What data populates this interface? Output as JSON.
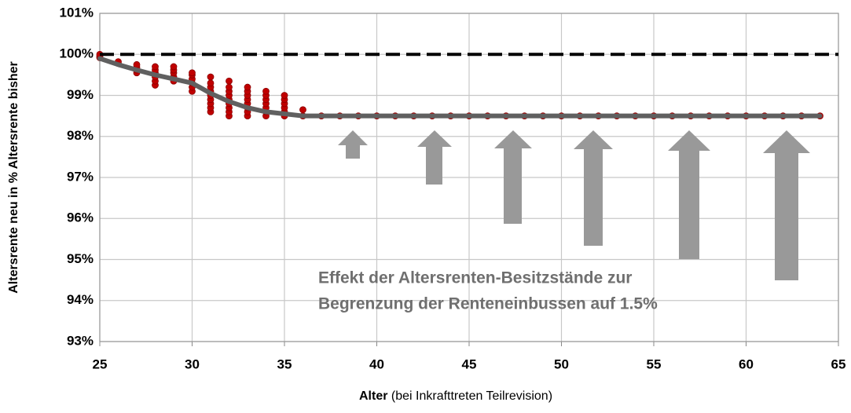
{
  "chart_data": {
    "type": "line",
    "y_label": "Altersrente neu in % Altersrente bisher",
    "x_label_bold": "Alter",
    "x_label": "(bei Inkrafttreten Teilrevision)",
    "annotation": [
      "Effekt der Altersrenten-Besitzstände zur",
      "Begrenzung der Renteneinbussen auf 1.5%"
    ],
    "xlim": [
      25,
      65
    ],
    "xticks": [
      25,
      30,
      35,
      40,
      45,
      50,
      55,
      60,
      65
    ],
    "ylim": [
      93,
      101
    ],
    "yticks": [
      {
        "value": 93,
        "label": "93%"
      },
      {
        "value": 94,
        "label": "94%"
      },
      {
        "value": 95,
        "label": "95%"
      },
      {
        "value": 96,
        "label": "96%"
      },
      {
        "value": 97,
        "label": "97%"
      },
      {
        "value": 98,
        "label": "98%"
      },
      {
        "value": 99,
        "label": "99%"
      },
      {
        "value": 100,
        "label": "100%"
      },
      {
        "value": 101,
        "label": "101%"
      }
    ],
    "grid": true,
    "series": [
      {
        "mode": "scatter",
        "color": "#c00000",
        "x": [
          25,
          25,
          25,
          26,
          26,
          27,
          27,
          27,
          27,
          28,
          28,
          28,
          28,
          28,
          28,
          29,
          29,
          29,
          29,
          29,
          30,
          30,
          30,
          30,
          30,
          30,
          31,
          31,
          31,
          31,
          31,
          31,
          31,
          31,
          31,
          32,
          32,
          32,
          32,
          32,
          32,
          32,
          32,
          32,
          33,
          33,
          33,
          33,
          33,
          33,
          33,
          33,
          34,
          34,
          34,
          34,
          34,
          34,
          34,
          35,
          35,
          35,
          35,
          35,
          35,
          36,
          36,
          37,
          38,
          39,
          40,
          41,
          42,
          43,
          44,
          45,
          46,
          47,
          48,
          49,
          50,
          51,
          52,
          53,
          54,
          55,
          56,
          57,
          58,
          59,
          60,
          61,
          62,
          63,
          64
        ],
        "values": [
          99.92,
          99.96,
          100,
          99.78,
          99.82,
          99.55,
          99.62,
          99.68,
          99.75,
          99.25,
          99.35,
          99.45,
          99.55,
          99.62,
          99.7,
          99.35,
          99.45,
          99.55,
          99.62,
          99.7,
          99.1,
          99.2,
          99.3,
          99.4,
          99.5,
          99.55,
          98.6,
          98.7,
          98.8,
          98.9,
          99.0,
          99.1,
          99.2,
          99.3,
          99.45,
          98.5,
          98.6,
          98.7,
          98.8,
          98.9,
          99.0,
          99.1,
          99.2,
          99.35,
          98.5,
          98.6,
          98.7,
          98.8,
          98.9,
          99.0,
          99.1,
          99.2,
          98.5,
          98.6,
          98.7,
          98.8,
          98.9,
          99.0,
          99.1,
          98.5,
          98.6,
          98.7,
          98.8,
          98.9,
          99.0,
          98.5,
          98.65,
          98.5,
          98.5,
          98.5,
          98.5,
          98.5,
          98.5,
          98.5,
          98.5,
          98.5,
          98.5,
          98.5,
          98.5,
          98.5,
          98.5,
          98.5,
          98.5,
          98.5,
          98.5,
          98.5,
          98.5,
          98.5,
          98.5,
          98.5,
          98.5,
          98.5,
          98.5,
          98.5,
          98.5
        ]
      },
      {
        "mode": "line",
        "color": "#606060",
        "x": [
          25,
          26,
          27,
          28,
          29,
          30,
          31,
          32,
          33,
          34,
          35,
          36,
          37,
          38,
          39,
          40,
          41,
          42,
          43,
          44,
          45,
          46,
          47,
          48,
          49,
          50,
          51,
          52,
          53,
          54,
          55,
          56,
          57,
          58,
          59,
          60,
          61,
          62,
          63,
          64
        ],
        "values": [
          99.9,
          99.75,
          99.62,
          99.5,
          99.4,
          99.3,
          99.05,
          98.85,
          98.7,
          98.6,
          98.55,
          98.5,
          98.5,
          98.5,
          98.5,
          98.5,
          98.5,
          98.5,
          98.5,
          98.5,
          98.5,
          98.5,
          98.5,
          98.5,
          98.5,
          98.5,
          98.5,
          98.5,
          98.5,
          98.5,
          98.5,
          98.5,
          98.5,
          98.5,
          98.5,
          98.5,
          98.5,
          98.5,
          98.5,
          98.5
        ]
      },
      {
        "mode": "dashed",
        "color": "#000000",
        "x": [
          25,
          65
        ],
        "values": [
          100,
          100
        ]
      }
    ]
  }
}
